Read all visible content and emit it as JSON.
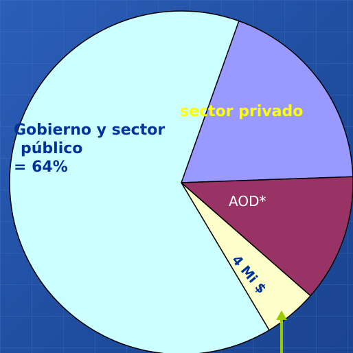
{
  "chart_data": {
    "type": "pie",
    "categories": [
      "sector privado",
      "AOD*",
      "4 Mi $",
      "Gobierno y sector público"
    ],
    "values": [
      19,
      12,
      5,
      64
    ],
    "value_labels": [
      null,
      null,
      null,
      "= 64%"
    ],
    "colors": [
      "#9999ff",
      "#993366",
      "#ffffcc",
      "#ccffff"
    ]
  }
}
